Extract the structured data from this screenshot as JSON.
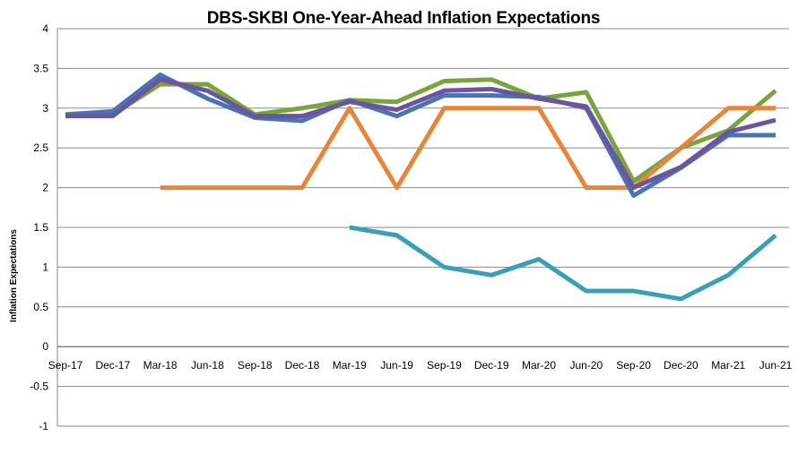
{
  "chart_data": {
    "type": "line",
    "title": "DBS-SKBI One-Year-Ahead Inflation Expectations",
    "xlabel": "",
    "ylabel": "Inflation Expectations",
    "categories": [
      "Sep-17",
      "Dec-17",
      "Mar-18",
      "Jun-18",
      "Sep-18",
      "Dec-18",
      "Mar-19",
      "Jun-19",
      "Sep-19",
      "Dec-19",
      "Mar-20",
      "Jun-20",
      "Sep-20",
      "Dec-20",
      "Mar-21",
      "Jun-21"
    ],
    "ylim": [
      -1,
      4
    ],
    "yticks": [
      "-1",
      "-0.5",
      "0",
      "0.5",
      "1",
      "1.5",
      "2",
      "2.5",
      "3",
      "3.5",
      "4"
    ],
    "grid": true,
    "legend": "none",
    "series": [
      {
        "color": "#7aa33e",
        "values": [
          2.9,
          2.92,
          3.3,
          3.3,
          2.92,
          3.0,
          3.1,
          3.08,
          3.34,
          3.36,
          3.12,
          3.2,
          2.08,
          2.5,
          2.72,
          3.22
        ]
      },
      {
        "color": "#e8853a",
        "values": [
          null,
          null,
          2.0,
          2.0,
          2.0,
          2.0,
          3.0,
          2.0,
          3.0,
          3.0,
          3.0,
          2.0,
          2.0,
          2.5,
          3.0,
          3.0
        ]
      },
      {
        "color": "#3a9fb4",
        "values": [
          null,
          null,
          null,
          null,
          null,
          null,
          1.5,
          1.4,
          1.0,
          0.9,
          1.1,
          0.7,
          0.7,
          0.6,
          0.9,
          1.4
        ]
      },
      {
        "color": "#4a72b5",
        "values": [
          2.92,
          2.96,
          3.42,
          3.12,
          2.88,
          2.84,
          3.1,
          2.9,
          3.16,
          3.16,
          3.14,
          3.0,
          1.9,
          2.25,
          2.66,
          2.66
        ]
      },
      {
        "color": "#6b559c",
        "values": [
          2.9,
          2.9,
          3.36,
          3.22,
          2.9,
          2.9,
          3.08,
          2.98,
          3.22,
          3.24,
          3.12,
          3.02,
          2.0,
          2.26,
          2.7,
          2.85
        ]
      }
    ]
  }
}
